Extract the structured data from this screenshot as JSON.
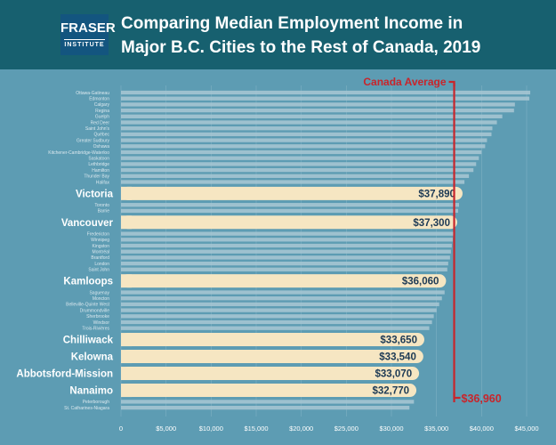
{
  "header": {
    "logo_line1": "FRASER",
    "logo_line2": "INSTITUTE",
    "title_line1": "Comparing Median Employment Income in",
    "title_line2": "Major B.C. Cities to the Rest of Canada, 2019"
  },
  "colors": {
    "header_bg": "#17606f",
    "page_bg": "#5d9cb3",
    "bar_default": "#a9c8d4",
    "bar_highlight": "#f6e6c2",
    "average_line": "#c8252b",
    "label_text": "#dce9ef",
    "value_text": "#1d3a55"
  },
  "chart_data": {
    "type": "bar",
    "orientation": "horizontal",
    "title": "Comparing Median Employment Income in Major B.C. Cities to the Rest of Canada, 2019",
    "xlim": [
      0,
      45000
    ],
    "xticks": [
      0,
      5000,
      10000,
      15000,
      20000,
      25000,
      30000,
      35000,
      40000,
      45000
    ],
    "xtick_labels": [
      "0",
      "$5,000",
      "$10,000",
      "$15,000",
      "$20,000",
      "$25,000",
      "$30,000",
      "$35,000",
      "$40,000",
      "$45,000"
    ],
    "reference_line": {
      "label": "Canada Average",
      "value": 36960,
      "value_label": "$36,960"
    },
    "bars": [
      {
        "city": "Ottawa-Gatineau",
        "value": 45400
      },
      {
        "city": "Edmonton",
        "value": 45300
      },
      {
        "city": "Calgary",
        "value": 43700
      },
      {
        "city": "Regina",
        "value": 43600
      },
      {
        "city": "Guelph",
        "value": 42300
      },
      {
        "city": "Red Deer",
        "value": 41700
      },
      {
        "city": "Saint John's",
        "value": 41200
      },
      {
        "city": "Québec",
        "value": 41100
      },
      {
        "city": "Greater Sudbury",
        "value": 40600
      },
      {
        "city": "Oshawa",
        "value": 40400
      },
      {
        "city": "Kitchener-Cambridge-Waterloo",
        "value": 40000
      },
      {
        "city": "Saskatoon",
        "value": 39700
      },
      {
        "city": "Lethbridge",
        "value": 39400
      },
      {
        "city": "Hamilton",
        "value": 39100
      },
      {
        "city": "Thunder Bay",
        "value": 38600
      },
      {
        "city": "Halifax",
        "value": 38100
      },
      {
        "city": "Victoria",
        "value": 37890,
        "label": "$37,890",
        "highlight": true
      },
      {
        "city": "Toronto",
        "value": 37500
      },
      {
        "city": "Barrie",
        "value": 37400
      },
      {
        "city": "Vancouver",
        "value": 37300,
        "label": "$37,300",
        "highlight": true
      },
      {
        "city": "Fredericton",
        "value": 37000
      },
      {
        "city": "Winnipeg",
        "value": 36800
      },
      {
        "city": "Kingston",
        "value": 36700
      },
      {
        "city": "Montréal",
        "value": 36600
      },
      {
        "city": "Brantford",
        "value": 36500
      },
      {
        "city": "London",
        "value": 36300
      },
      {
        "city": "Saint John",
        "value": 36200
      },
      {
        "city": "Kamloops",
        "value": 36060,
        "label": "$36,060",
        "highlight": true
      },
      {
        "city": "Saguenay",
        "value": 35900
      },
      {
        "city": "Moncton",
        "value": 35600
      },
      {
        "city": "Belleville-Quinte West",
        "value": 35300
      },
      {
        "city": "Drummondville",
        "value": 35000
      },
      {
        "city": "Sherbrooke",
        "value": 34700
      },
      {
        "city": "Windsor",
        "value": 34500
      },
      {
        "city": "Trois-Rivières",
        "value": 34200
      },
      {
        "city": "Chilliwack",
        "value": 33650,
        "label": "$33,650",
        "highlight": true
      },
      {
        "city": "Kelowna",
        "value": 33540,
        "label": "$33,540",
        "highlight": true
      },
      {
        "city": "Abbotsford-Mission",
        "value": 33070,
        "label": "$33,070",
        "highlight": true
      },
      {
        "city": "Nanaimo",
        "value": 32770,
        "label": "$32,770",
        "highlight": true
      },
      {
        "city": "Peterborough",
        "value": 32500
      },
      {
        "city": "St. Catharines-Niagara",
        "value": 32000
      }
    ]
  }
}
